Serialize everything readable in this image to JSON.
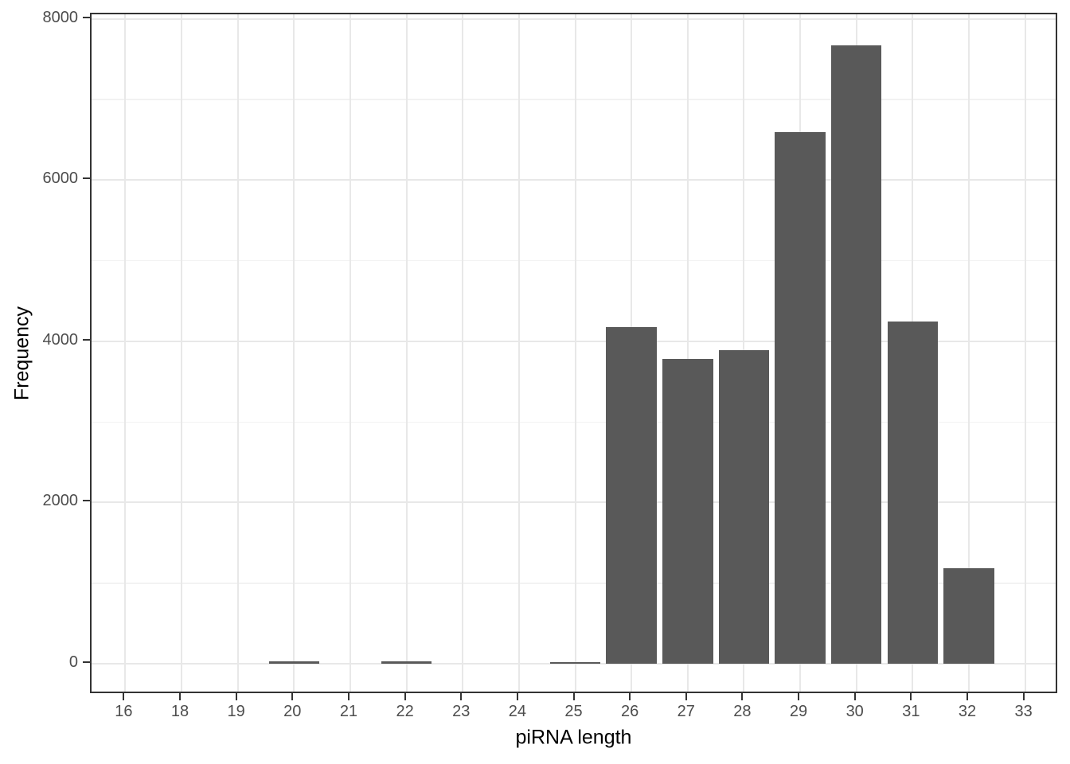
{
  "chart_data": {
    "type": "bar",
    "variant": "histogram",
    "title": "",
    "xlabel": "piRNA length",
    "ylabel": "Frequency",
    "categories": [
      "16",
      "18",
      "19",
      "20",
      "21",
      "22",
      "23",
      "24",
      "25",
      "26",
      "27",
      "28",
      "29",
      "30",
      "31",
      "32",
      "33"
    ],
    "values": [
      0,
      0,
      0,
      25,
      0,
      25,
      0,
      0,
      20,
      4180,
      3780,
      3890,
      6590,
      7670,
      4240,
      1180,
      0
    ],
    "y_ticks": [
      0,
      2000,
      4000,
      6000,
      8000
    ],
    "y_minor_ticks": [
      1000,
      3000,
      5000,
      7000
    ],
    "ylim": [
      -385,
      8055
    ],
    "bar_width_fraction": 0.9,
    "discrete_expand": 0.6,
    "legend_position": "none",
    "grid": "major-and-minor-horizontal, major-vertical",
    "colors": {
      "bar_fill": "#595959",
      "panel_border": "#333333",
      "grid_major": "#e8e8e8",
      "grid_minor": "#f2f2f2",
      "tick_label": "#4d4d4d",
      "axis_title": "#000000",
      "background": "#ffffff"
    }
  }
}
